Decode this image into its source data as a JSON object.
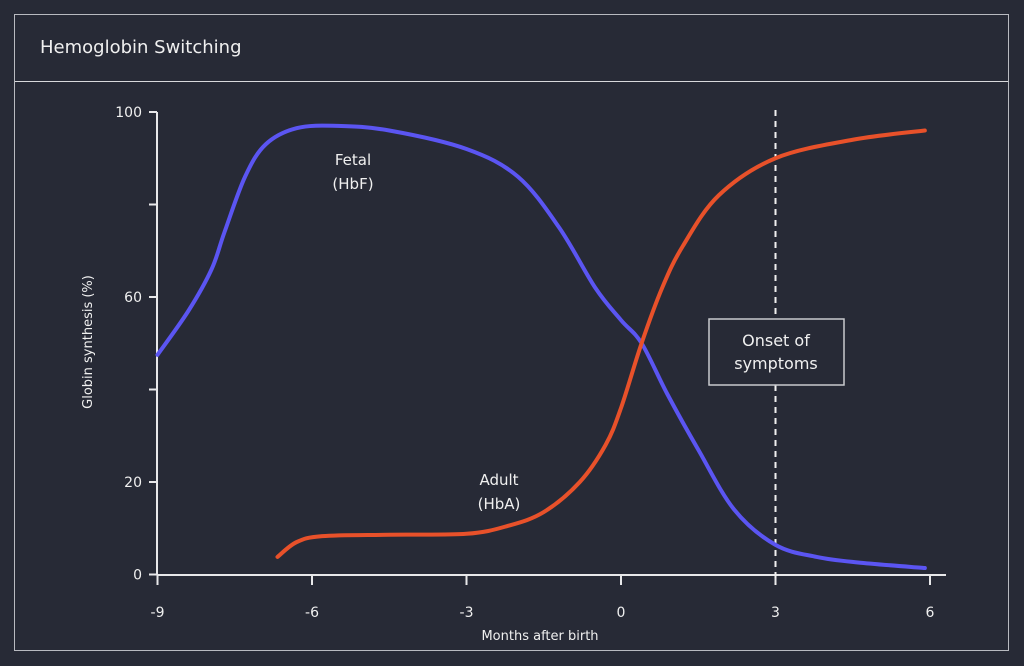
{
  "header": {
    "title": "Hemoglobin Switching"
  },
  "chart_data": {
    "type": "line",
    "title": "Hemoglobin Switching",
    "xlabel": "Months after birth",
    "ylabel": "Globin synthesis (%)",
    "xlim": [
      -9,
      6.5
    ],
    "ylim": [
      0,
      100
    ],
    "x_ticks": [
      -9,
      -6,
      -3,
      0,
      3,
      6
    ],
    "y_ticks": [
      0,
      20,
      40,
      60,
      80,
      100
    ],
    "y_tick_labels": [
      "0",
      "20",
      "",
      "60",
      "",
      "100"
    ],
    "grid": false,
    "series": [
      {
        "name": "Fetal (HbF)",
        "label_lines": [
          "Fetal",
          "(HbF)"
        ],
        "color": "#5b55f2",
        "x": [
          -9,
          -8.4,
          -7.95,
          -7.7,
          -7.3,
          -6.9,
          -6.3,
          -5.5,
          -4.5,
          -3,
          -2,
          -1.2,
          -0.5,
          0,
          0.4,
          0.9,
          1.5,
          2.2,
          3,
          3.8,
          4.6,
          5.9
        ],
        "y": [
          47.5,
          57,
          66,
          74,
          86,
          93,
          96.5,
          97,
          96,
          92,
          86,
          75,
          62,
          55,
          50,
          39,
          27,
          14,
          6.4,
          3.8,
          2.6,
          1.4
        ]
      },
      {
        "name": "Adult (HbA)",
        "label_lines": [
          "Adult",
          "(HbA)"
        ],
        "color": "#e8512a",
        "x": [
          -6.67,
          -6.3,
          -5.8,
          -4.5,
          -3,
          -2.2,
          -1.5,
          -0.8,
          -0.3,
          0,
          0.4,
          0.8,
          1.2,
          1.9,
          3,
          4.5,
          5.9
        ],
        "y": [
          3.8,
          7,
          8.3,
          8.6,
          8.8,
          10.5,
          13.5,
          20,
          28,
          36,
          50,
          62,
          71,
          82,
          90,
          94,
          96
        ]
      }
    ],
    "annotations": [
      {
        "type": "vline",
        "x": 3,
        "style": "dashed",
        "label_lines": [
          "Onset of",
          "symptoms"
        ]
      }
    ]
  }
}
